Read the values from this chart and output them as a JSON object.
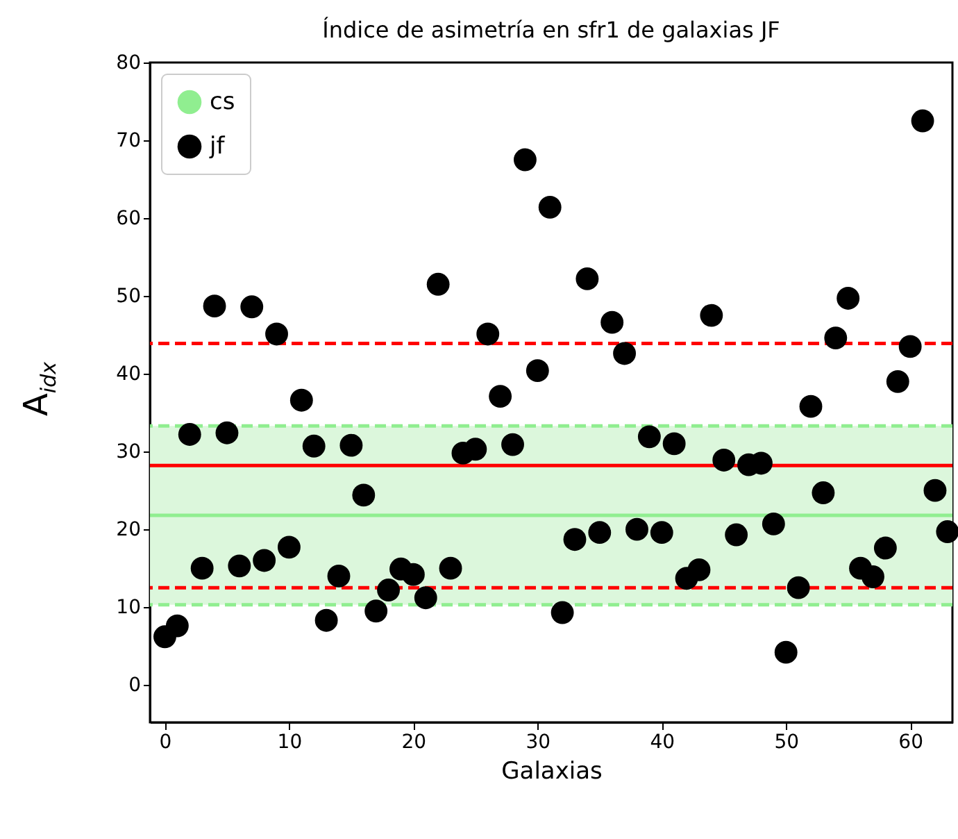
{
  "chart_data": {
    "type": "scatter",
    "title": "Índice de asimetría en sfr1 de galaxias JF",
    "xlabel": "Galaxias",
    "ylabel": "A$_{idx}$",
    "x": [
      0,
      1,
      2,
      3,
      4,
      5,
      6,
      7,
      8,
      9,
      10,
      11,
      12,
      13,
      14,
      15,
      16,
      17,
      18,
      19,
      20,
      21,
      22,
      23,
      24,
      25,
      26,
      27,
      28,
      29,
      30,
      31,
      32,
      33,
      34,
      35,
      36,
      37,
      38,
      39,
      40,
      41,
      42,
      43,
      44,
      45,
      46,
      47,
      48,
      49,
      50,
      51,
      52,
      53,
      54,
      55,
      56,
      57,
      58,
      59,
      60,
      61,
      62,
      63
    ],
    "series": [
      {
        "name": "jf",
        "color": "#000000",
        "values": [
          6.2,
          7.6,
          32.2,
          15.0,
          48.7,
          32.4,
          15.3,
          48.6,
          16.0,
          45.1,
          17.7,
          36.6,
          30.7,
          8.3,
          14.0,
          30.8,
          24.4,
          9.5,
          12.2,
          14.9,
          14.2,
          11.2,
          51.5,
          15.0,
          29.8,
          30.3,
          45.1,
          37.1,
          30.9,
          67.5,
          40.4,
          61.4,
          9.3,
          18.7,
          52.2,
          19.6,
          46.6,
          42.6,
          20.0,
          31.9,
          19.6,
          31.0,
          13.7,
          14.8,
          47.5,
          28.9,
          19.3,
          28.3,
          28.5,
          20.7,
          4.2,
          12.5,
          35.8,
          24.7,
          44.6,
          49.7,
          15.0,
          13.9,
          17.6,
          39.0,
          43.5,
          72.5,
          25.0,
          19.7
        ]
      }
    ],
    "xlim": [
      -1.2,
      63.4
    ],
    "xticks": [
      0,
      10,
      20,
      30,
      40,
      50,
      60
    ],
    "ylim": [
      -4.8,
      80
    ],
    "yticks": [
      0,
      10,
      20,
      30,
      40,
      50,
      60,
      70,
      80
    ],
    "bands": [
      {
        "axis": "y",
        "from": 10.3,
        "to": 33.3,
        "color": "#dcf7dc"
      }
    ],
    "ref_lines": [
      {
        "axis": "y",
        "value": 33.3,
        "label": "cs",
        "color": "#90ee90",
        "line_style": "dashed"
      },
      {
        "axis": "y",
        "value": 10.3,
        "color": "#90ee90",
        "line_style": "dashed"
      },
      {
        "axis": "y",
        "value": 21.8,
        "color": "#90ee90",
        "line_style": "solid"
      },
      {
        "axis": "y",
        "value": 28.2,
        "color": "#ff0000",
        "line_style": "solid"
      },
      {
        "axis": "y",
        "value": 43.9,
        "color": "#ff0000",
        "line_style": "dashed"
      },
      {
        "axis": "y",
        "value": 12.5,
        "color": "#ff0000",
        "line_style": "dashed"
      }
    ],
    "grid": false,
    "legend": "top left",
    "marker": "circle"
  }
}
